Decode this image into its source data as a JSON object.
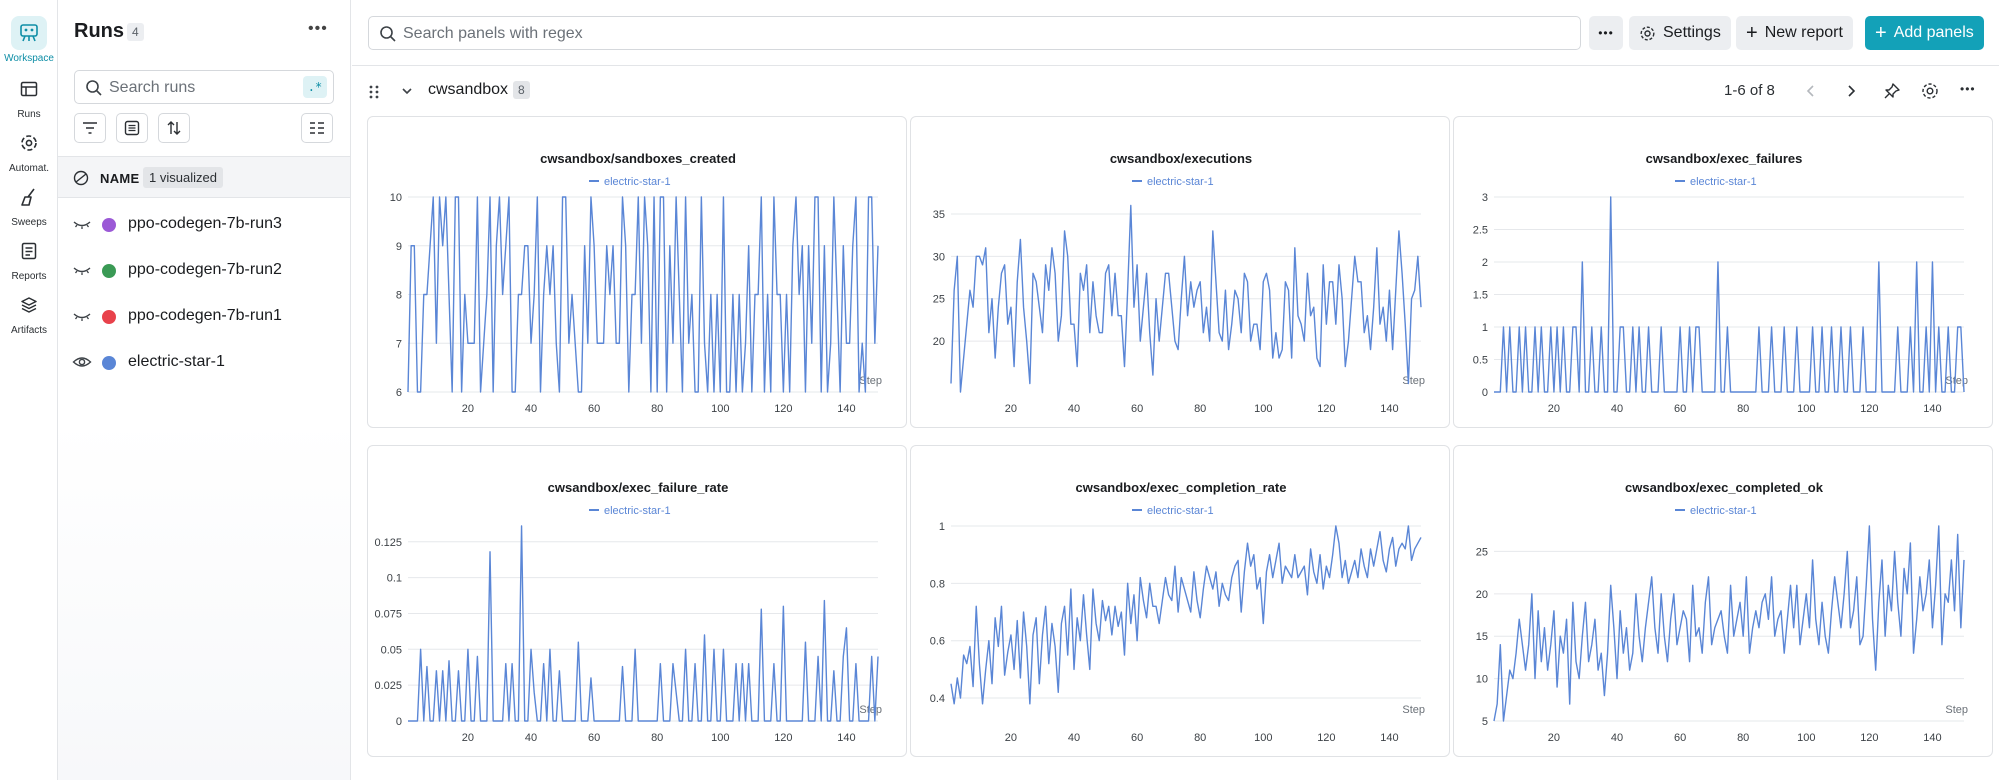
{
  "rail": {
    "items": [
      {
        "label": "Workspace",
        "icon": "workspace-icon",
        "active": true
      },
      {
        "label": "Runs",
        "icon": "runs-icon"
      },
      {
        "label": "Automat.",
        "icon": "automations-icon"
      },
      {
        "label": "Sweeps",
        "icon": "sweeps-icon"
      },
      {
        "label": "Reports",
        "icon": "reports-icon"
      },
      {
        "label": "Artifacts",
        "icon": "artifacts-icon"
      }
    ]
  },
  "runs_panel": {
    "title": "Runs",
    "count": "4",
    "search_placeholder": "Search runs",
    "regex_label": ".*",
    "name_header": "NAME",
    "visualized_badge": "1 visualized",
    "runs": [
      {
        "name": "ppo-codegen-7b-run3",
        "color": "#9b59d6",
        "visible": false
      },
      {
        "name": "ppo-codegen-7b-run2",
        "color": "#3a9a55",
        "visible": false
      },
      {
        "name": "ppo-codegen-7b-run1",
        "color": "#e8424b",
        "visible": false
      },
      {
        "name": "electric-star-1",
        "color": "#5a86d6",
        "visible": true
      }
    ]
  },
  "topbar": {
    "search_placeholder": "Search panels with regex",
    "settings_label": "Settings",
    "new_report_label": "New report",
    "add_panels_label": "Add panels"
  },
  "section": {
    "name": "cwsandbox",
    "count": "8",
    "pagination": "1-6 of 8"
  },
  "colors": {
    "accent": "#13a1b8",
    "series": "#5a86d6"
  },
  "chart_data": [
    {
      "type": "line",
      "title": "cwsandbox/sandboxes_created",
      "legend": "electric-star-1",
      "xlabel": "Step",
      "xticks": [
        20,
        40,
        60,
        80,
        100,
        120,
        140
      ],
      "yticks": [
        6,
        7,
        8,
        9,
        10
      ],
      "yticklabels": [
        "6",
        "7",
        "8",
        "9",
        "10"
      ],
      "xlim": [
        1,
        150
      ],
      "ylim": [
        6,
        10
      ],
      "series": [
        {
          "name": "electric-star-1",
          "values": [
            6,
            9,
            9,
            6,
            6,
            8,
            8,
            9,
            10,
            7,
            10,
            9,
            10,
            8,
            6,
            10,
            10,
            6,
            8,
            7,
            7,
            7,
            10,
            6,
            7,
            8,
            10,
            6,
            9,
            10,
            8,
            9,
            10,
            6,
            6,
            8,
            8,
            9,
            9,
            7,
            8,
            10,
            6,
            8,
            9,
            8,
            9,
            7,
            6,
            10,
            10,
            7,
            8,
            7,
            6,
            6,
            9,
            7,
            10,
            9,
            7,
            7,
            7,
            9,
            8,
            9,
            7,
            7,
            10,
            9,
            6,
            8,
            8,
            10,
            7,
            10,
            9,
            6,
            10,
            6,
            10,
            10,
            6,
            9,
            7,
            10,
            8,
            6,
            10,
            7,
            8,
            6,
            6,
            10,
            7,
            6,
            8,
            6,
            8,
            6,
            10,
            6,
            6,
            8,
            6,
            8,
            6,
            7,
            9,
            6,
            8,
            8,
            10,
            6,
            8,
            6,
            10,
            8,
            8,
            6,
            8,
            6,
            9,
            10,
            8,
            9,
            6,
            9,
            7,
            10,
            10,
            6,
            9,
            6,
            7,
            10,
            8,
            6,
            9,
            7,
            7,
            9,
            10,
            6,
            7,
            6,
            10,
            10,
            7,
            9
          ]
        }
      ]
    },
    {
      "type": "line",
      "title": "cwsandbox/executions",
      "legend": "electric-star-1",
      "xlabel": "Step",
      "xticks": [
        20,
        40,
        60,
        80,
        100,
        120,
        140
      ],
      "yticks": [
        20,
        25,
        30,
        35
      ],
      "yticklabels": [
        "20",
        "25",
        "30",
        "35"
      ],
      "xlim": [
        1,
        150
      ],
      "ylim": [
        14,
        37
      ],
      "series": [
        {
          "name": "electric-star-1",
          "values": [
            15,
            26,
            30,
            14,
            18,
            22,
            26,
            24,
            30,
            30,
            29,
            31,
            21,
            25,
            18,
            24,
            28,
            29,
            22,
            24,
            17,
            27,
            32,
            24,
            20,
            15,
            28,
            27,
            24,
            21,
            29,
            26,
            31,
            28,
            20,
            23,
            33,
            30,
            22,
            22,
            17,
            28,
            26,
            29,
            21,
            27,
            23,
            21,
            21,
            28,
            29,
            23,
            28,
            23,
            23,
            17,
            26,
            36,
            24,
            29,
            20,
            24,
            28,
            21,
            16,
            25,
            20,
            24,
            28,
            28,
            24,
            20,
            19,
            25,
            30,
            23,
            27,
            24,
            26,
            27,
            21,
            24,
            20,
            33,
            27,
            21,
            20,
            26,
            19,
            22,
            26,
            25,
            21,
            28,
            27,
            20,
            22,
            22,
            19,
            27,
            28,
            26,
            18,
            21,
            18,
            19,
            27,
            26,
            18,
            31,
            23,
            22,
            20,
            28,
            23,
            24,
            18,
            17,
            29,
            22,
            27,
            27,
            22,
            29,
            25,
            17,
            20,
            25,
            30,
            27,
            27,
            21,
            23,
            19,
            24,
            31,
            22,
            24,
            20,
            26,
            19,
            26,
            33,
            28,
            22,
            15,
            25,
            26,
            30,
            24
          ]
        }
      ]
    },
    {
      "type": "line",
      "title": "cwsandbox/exec_failures",
      "legend": "electric-star-1",
      "xlabel": "Step",
      "xticks": [
        20,
        40,
        60,
        80,
        100,
        120,
        140
      ],
      "yticks": [
        0,
        0.5,
        1,
        1.5,
        2,
        2.5,
        3
      ],
      "yticklabels": [
        "0",
        "0.5",
        "1",
        "1.5",
        "2",
        "2.5",
        "3"
      ],
      "xlim": [
        1,
        150
      ],
      "ylim": [
        0,
        3
      ],
      "series": [
        {
          "name": "electric-star-1",
          "values": [
            0,
            0,
            0,
            1,
            0,
            1,
            0,
            0,
            1,
            0,
            1,
            0,
            0,
            1,
            0,
            1,
            0,
            0,
            1,
            0,
            1,
            0,
            1,
            0,
            0,
            1,
            1,
            0,
            2,
            0,
            0,
            1,
            0,
            0,
            1,
            0,
            0,
            3,
            0,
            0,
            1,
            1,
            0,
            0,
            1,
            0,
            1,
            0,
            0,
            1,
            0,
            0,
            0,
            1,
            0,
            0,
            0,
            0,
            0,
            1,
            0,
            0,
            1,
            0,
            1,
            1,
            0,
            0,
            0,
            0,
            0,
            2,
            0,
            0,
            1,
            0,
            0,
            0,
            0,
            0,
            0,
            0,
            0,
            0,
            1,
            0,
            0,
            0,
            1,
            0,
            0,
            0,
            1,
            0,
            0,
            0,
            1,
            0,
            0,
            0,
            0,
            1,
            0,
            0,
            1,
            0,
            0,
            1,
            0,
            0,
            1,
            0,
            0,
            1,
            0,
            0,
            0,
            1,
            0,
            0,
            0,
            0,
            2,
            0,
            0,
            0,
            0,
            0,
            1,
            0,
            0,
            0,
            1,
            0,
            2,
            0,
            0,
            1,
            0,
            2,
            0,
            1,
            0,
            0,
            1,
            0,
            0,
            1,
            1,
            0
          ]
        }
      ]
    },
    {
      "type": "line",
      "title": "cwsandbox/exec_failure_rate",
      "legend": "electric-star-1",
      "xlabel": "Step",
      "xticks": [
        20,
        40,
        60,
        80,
        100,
        120,
        140
      ],
      "yticks": [
        0,
        0.025,
        0.05,
        0.075,
        0.1,
        0.125
      ],
      "yticklabels": [
        "0",
        "0.025",
        "0.05",
        "0.075",
        "0.1",
        "0.125"
      ],
      "xlim": [
        1,
        150
      ],
      "ylim": [
        0,
        0.136
      ],
      "series": [
        {
          "name": "electric-star-1",
          "values": [
            0,
            0,
            0,
            0,
            0.05,
            0,
            0.038,
            0,
            0,
            0.035,
            0,
            0.035,
            0,
            0.042,
            0,
            0,
            0.035,
            0,
            0,
            0.05,
            0,
            0,
            0.045,
            0,
            0,
            0,
            0.118,
            0,
            0,
            0,
            0,
            0.04,
            0,
            0.04,
            0,
            0,
            0.136,
            0,
            0,
            0.05,
            0.02,
            0,
            0,
            0.04,
            0,
            0.05,
            0,
            0,
            0.035,
            0,
            0,
            0,
            0,
            0,
            0.055,
            0,
            0,
            0,
            0.03,
            0,
            0,
            0,
            0,
            0,
            0,
            0,
            0,
            0,
            0.038,
            0,
            0,
            0,
            0.05,
            0,
            0,
            0,
            0,
            0,
            0,
            0,
            0.04,
            0,
            0,
            0,
            0.04,
            0.02,
            0,
            0,
            0.05,
            0,
            0,
            0.04,
            0,
            0,
            0.06,
            0,
            0,
            0.05,
            0,
            0,
            0.05,
            0,
            0,
            0,
            0.04,
            0,
            0.04,
            0,
            0.04,
            0,
            0,
            0,
            0.078,
            0,
            0,
            0,
            0.04,
            0,
            0,
            0.08,
            0,
            0,
            0,
            0,
            0,
            0,
            0.055,
            0,
            0,
            0,
            0.045,
            0,
            0.084,
            0,
            0,
            0.035,
            0,
            0,
            0.045,
            0.065,
            0,
            0,
            0.04,
            0,
            0,
            0,
            0,
            0.045,
            0,
            0.045
          ]
        }
      ]
    },
    {
      "type": "line",
      "title": "cwsandbox/exec_completion_rate",
      "legend": "electric-star-1",
      "xlabel": "Step",
      "xticks": [
        20,
        40,
        60,
        80,
        100,
        120,
        140
      ],
      "yticks": [
        0.4,
        0.6,
        0.8,
        1
      ],
      "yticklabels": [
        "0.4",
        "0.6",
        "0.8",
        "1"
      ],
      "xlim": [
        1,
        150
      ],
      "ylim": [
        0.32,
        1
      ],
      "series": [
        {
          "name": "electric-star-1",
          "values": [
            0.45,
            0.38,
            0.47,
            0.4,
            0.55,
            0.52,
            0.58,
            0.44,
            0.72,
            0.52,
            0.38,
            0.5,
            0.6,
            0.45,
            0.68,
            0.58,
            0.72,
            0.48,
            0.56,
            0.62,
            0.5,
            0.67,
            0.47,
            0.7,
            0.58,
            0.38,
            0.62,
            0.68,
            0.45,
            0.62,
            0.72,
            0.52,
            0.66,
            0.58,
            0.42,
            0.66,
            0.72,
            0.55,
            0.78,
            0.5,
            0.68,
            0.6,
            0.76,
            0.62,
            0.5,
            0.78,
            0.66,
            0.6,
            0.74,
            0.67,
            0.72,
            0.62,
            0.72,
            0.65,
            0.7,
            0.55,
            0.8,
            0.66,
            0.76,
            0.6,
            0.82,
            0.74,
            0.68,
            0.8,
            0.72,
            0.72,
            0.66,
            0.74,
            0.82,
            0.76,
            0.74,
            0.86,
            0.7,
            0.82,
            0.78,
            0.74,
            0.7,
            0.84,
            0.74,
            0.68,
            0.78,
            0.86,
            0.82,
            0.78,
            0.84,
            0.72,
            0.8,
            0.76,
            0.74,
            0.82,
            0.86,
            0.88,
            0.7,
            0.84,
            0.94,
            0.86,
            0.9,
            0.78,
            0.82,
            0.66,
            0.84,
            0.9,
            0.82,
            0.88,
            0.94,
            0.8,
            0.86,
            0.84,
            0.82,
            0.9,
            0.82,
            0.84,
            0.86,
            0.76,
            0.92,
            0.84,
            0.8,
            0.9,
            0.78,
            0.86,
            0.82,
            0.9,
            1.0,
            0.94,
            0.82,
            0.88,
            0.8,
            0.84,
            0.88,
            0.82,
            0.92,
            0.86,
            0.82,
            0.92,
            0.86,
            0.92,
            0.98,
            0.88,
            0.84,
            0.92,
            0.96,
            0.86,
            0.92,
            0.94,
            0.92,
            1.0,
            0.88,
            0.92,
            0.94,
            0.96
          ]
        }
      ]
    },
    {
      "type": "line",
      "title": "cwsandbox/exec_completed_ok",
      "legend": "electric-star-1",
      "xlabel": "Step",
      "xticks": [
        20,
        40,
        60,
        80,
        100,
        120,
        140
      ],
      "yticks": [
        5,
        10,
        15,
        20,
        25
      ],
      "yticklabels": [
        "5",
        "10",
        "15",
        "20",
        "25"
      ],
      "xlim": [
        1,
        150
      ],
      "ylim": [
        5,
        28
      ],
      "series": [
        {
          "name": "electric-star-1",
          "values": [
            5,
            7,
            14,
            5,
            8,
            11,
            10,
            13,
            17,
            14,
            11,
            14,
            20,
            10,
            18,
            12,
            16,
            11,
            14,
            18,
            9,
            15,
            13,
            17,
            7,
            19,
            12,
            10,
            15,
            19,
            12,
            14,
            17,
            11,
            13,
            8,
            13,
            21,
            16,
            10,
            18,
            13,
            16,
            11,
            13,
            20,
            15,
            12,
            16,
            19,
            22,
            16,
            13,
            20,
            15,
            12,
            17,
            20,
            14,
            16,
            18,
            17,
            12,
            21,
            15,
            16,
            13,
            19,
            22,
            14,
            16,
            17,
            18,
            15,
            13,
            21,
            15,
            17,
            19,
            15,
            22,
            13,
            16,
            18,
            16,
            19,
            20,
            17,
            22,
            15,
            17,
            18,
            13,
            17,
            21,
            16,
            21,
            14,
            17,
            20,
            16,
            24,
            17,
            14,
            19,
            15,
            13,
            18,
            22,
            19,
            16,
            20,
            25,
            16,
            18,
            22,
            14,
            15,
            21,
            28,
            17,
            11,
            19,
            24,
            15,
            21,
            18,
            25,
            19,
            15,
            23,
            20,
            26,
            13,
            17,
            22,
            18,
            20,
            24,
            16,
            21,
            28,
            14,
            20,
            19,
            24,
            18,
            27,
            16,
            24
          ]
        }
      ]
    }
  ]
}
